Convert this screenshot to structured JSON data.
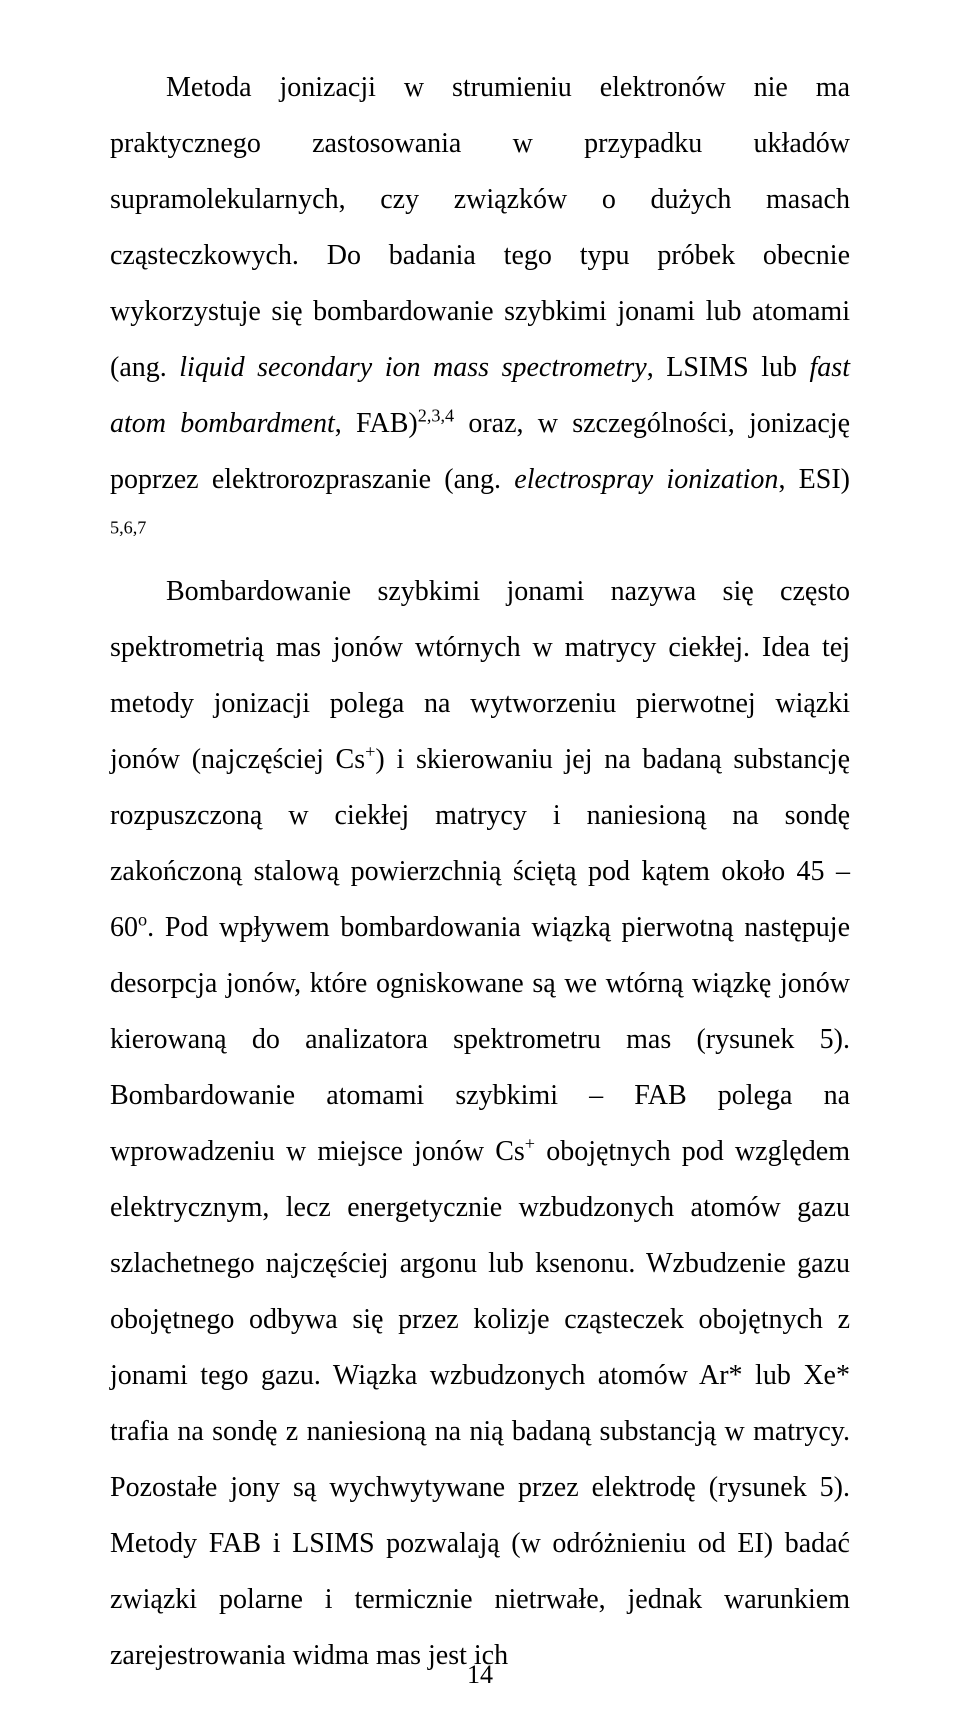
{
  "page": {
    "number": "14",
    "font_family": "Times New Roman",
    "font_size_pt": 14,
    "line_height": 2.0,
    "text_color": "#000000",
    "background_color": "#ffffff",
    "paragraph": {
      "t01": "Metoda jonizacji w strumieniu elektronów nie ma praktycznego zastosowania w przypadku układów supramolekularnych, czy związków o dużych masach cząsteczkowych. Do badania tego typu próbek obecnie wykorzystuje się bombardowanie szybkimi jonami lub atomami (ang. ",
      "t02_italic": "liquid secondary ion mass spectrometry",
      "t03": ", LSIMS lub ",
      "t04_italic": "fast atom bombardment",
      "t05": ", FAB)",
      "t06_sup": "2,3,4",
      "t07": " oraz, w szczególności, jonizację poprzez elektrorozpraszanie (ang. ",
      "t08_italic": "electrospray ionization",
      "t09": ", ESI) ",
      "t10_sup": "5,6,7",
      "t11_newpar": "Bombardowanie szybkimi jonami nazywa się często spektrometrią mas jonów wtórnych w matrycy ciekłej. Idea tej metody jonizacji polega na wytworzeniu pierwotnej wiązki jonów (najczęściej Cs",
      "t12_sup": "+",
      "t13": ") i skierowaniu jej na badaną substancję rozpuszczoną w ciekłej matrycy i naniesioną na sondę zakończoną stalową powierzchnią ściętą pod kątem około 45 – 60",
      "t14_sup": "o",
      "t15": ". Pod wpływem bombardowania wiązką pierwotną następuje desorpcja jonów, które ogniskowane są we wtórną wiązkę jonów kierowaną do analizatora spektrometru mas (rysunek 5). Bombardowanie atomami szybkimi – FAB polega na wprowadzeniu w miejsce jonów Cs",
      "t16_sup": "+",
      "t17": " obojętnych pod względem elektrycznym, lecz energetycznie wzbudzonych atomów gazu szlachetnego najczęściej argonu lub ksenonu. Wzbudzenie gazu obojętnego odbywa się przez kolizje cząsteczek obojętnych z jonami tego gazu. Wiązka wzbudzonych atomów Ar* lub Xe* trafia na sondę z naniesioną na nią badaną substancją w matrycy. Pozostałe jony są wychwytywane przez elektrodę (rysunek 5). Metody FAB i LSIMS pozwalają (w odróżnieniu od EI) badać związki polarne i termicznie nietrwałe, jednak warunkiem zarejestrowania widma mas jest ich"
    }
  }
}
